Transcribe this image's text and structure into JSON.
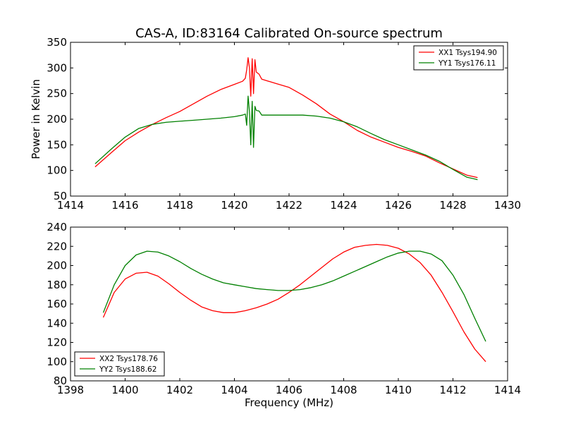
{
  "chart_data": [
    {
      "type": "line",
      "title": "CAS-A, ID:83164 Calibrated On-source spectrum",
      "xlabel": "",
      "ylabel": "Power in Kelvin",
      "xlim": [
        1414,
        1430
      ],
      "ylim": [
        50,
        350
      ],
      "xticks": [
        1414,
        1416,
        1418,
        1420,
        1422,
        1424,
        1426,
        1428,
        1430
      ],
      "yticks": [
        50,
        100,
        150,
        200,
        250,
        300,
        350
      ],
      "legend_position": "top-right",
      "series": [
        {
          "name": "XX1 Tsys194.90",
          "color": "#ff0000",
          "x": [
            1414.9,
            1415.5,
            1416,
            1416.5,
            1417,
            1417.5,
            1418,
            1418.5,
            1419,
            1419.5,
            1420,
            1420.3,
            1420.4,
            1420.45,
            1420.5,
            1420.55,
            1420.6,
            1420.65,
            1420.7,
            1420.75,
            1420.8,
            1420.9,
            1421,
            1421.5,
            1422,
            1422.5,
            1423,
            1423.5,
            1424,
            1424.5,
            1425,
            1425.5,
            1426,
            1426.5,
            1427,
            1427.5,
            1428,
            1428.5,
            1428.9
          ],
          "y": [
            107,
            135,
            158,
            175,
            190,
            203,
            215,
            230,
            245,
            258,
            268,
            274,
            280,
            296,
            320,
            300,
            245,
            318,
            250,
            316,
            292,
            288,
            278,
            270,
            262,
            247,
            230,
            210,
            195,
            178,
            165,
            155,
            145,
            137,
            128,
            115,
            103,
            91,
            86
          ]
        },
        {
          "name": "YY1 Tsys176.11",
          "color": "#008000",
          "x": [
            1414.9,
            1415.5,
            1416,
            1416.5,
            1417,
            1417.5,
            1418,
            1418.5,
            1419,
            1419.5,
            1420,
            1420.3,
            1420.4,
            1420.45,
            1420.5,
            1420.55,
            1420.6,
            1420.65,
            1420.7,
            1420.75,
            1420.8,
            1420.9,
            1421,
            1421.5,
            1422,
            1422.5,
            1423,
            1423.5,
            1424,
            1424.5,
            1425,
            1425.5,
            1426,
            1426.5,
            1427,
            1427.5,
            1428,
            1428.5,
            1428.9
          ],
          "y": [
            113,
            142,
            165,
            182,
            190,
            194,
            196,
            198,
            200,
            202,
            205,
            208,
            210,
            188,
            245,
            215,
            150,
            235,
            145,
            225,
            217,
            216,
            208,
            208,
            208,
            208,
            206,
            202,
            195,
            185,
            172,
            160,
            150,
            140,
            130,
            118,
            102,
            87,
            82
          ]
        }
      ]
    },
    {
      "type": "line",
      "title": "",
      "xlabel": "Frequency (MHz)",
      "ylabel": "",
      "xlim": [
        1398,
        1414
      ],
      "ylim": [
        80,
        240
      ],
      "xticks": [
        1398,
        1400,
        1402,
        1404,
        1406,
        1408,
        1410,
        1412,
        1414
      ],
      "yticks": [
        80,
        100,
        120,
        140,
        160,
        180,
        200,
        220,
        240
      ],
      "legend_position": "bottom-left",
      "series": [
        {
          "name": "XX2 Tsys178.76",
          "color": "#ff0000",
          "x": [
            1399.2,
            1399.6,
            1400,
            1400.4,
            1400.8,
            1401.2,
            1401.6,
            1402,
            1402.4,
            1402.8,
            1403.2,
            1403.6,
            1404,
            1404.4,
            1404.8,
            1405.2,
            1405.6,
            1406,
            1406.4,
            1406.8,
            1407.2,
            1407.6,
            1408,
            1408.4,
            1408.8,
            1409.2,
            1409.6,
            1410,
            1410.4,
            1410.8,
            1411.2,
            1411.6,
            1412,
            1412.4,
            1412.8,
            1413.2
          ],
          "y": [
            146,
            172,
            186,
            192,
            193,
            189,
            181,
            172,
            164,
            157,
            153,
            151,
            151,
            153,
            156,
            160,
            165,
            172,
            180,
            189,
            198,
            207,
            214,
            219,
            221,
            222,
            221,
            218,
            212,
            203,
            190,
            172,
            152,
            131,
            113,
            100
          ]
        },
        {
          "name": "YY2 Tsys188.62",
          "color": "#008000",
          "x": [
            1399.2,
            1399.6,
            1400,
            1400.4,
            1400.8,
            1401.2,
            1401.6,
            1402,
            1402.4,
            1402.8,
            1403.2,
            1403.6,
            1404,
            1404.4,
            1404.8,
            1405.2,
            1405.6,
            1406,
            1406.4,
            1406.8,
            1407.2,
            1407.6,
            1408,
            1408.4,
            1408.8,
            1409.2,
            1409.6,
            1410,
            1410.4,
            1410.8,
            1411.2,
            1411.6,
            1412,
            1412.4,
            1412.8,
            1413.2
          ],
          "y": [
            151,
            180,
            200,
            211,
            215,
            214,
            210,
            204,
            197,
            191,
            186,
            182,
            180,
            178,
            176,
            175,
            174,
            174,
            175,
            177,
            180,
            184,
            189,
            194,
            199,
            204,
            209,
            213,
            215,
            215,
            212,
            205,
            190,
            170,
            145,
            121
          ]
        }
      ]
    }
  ]
}
